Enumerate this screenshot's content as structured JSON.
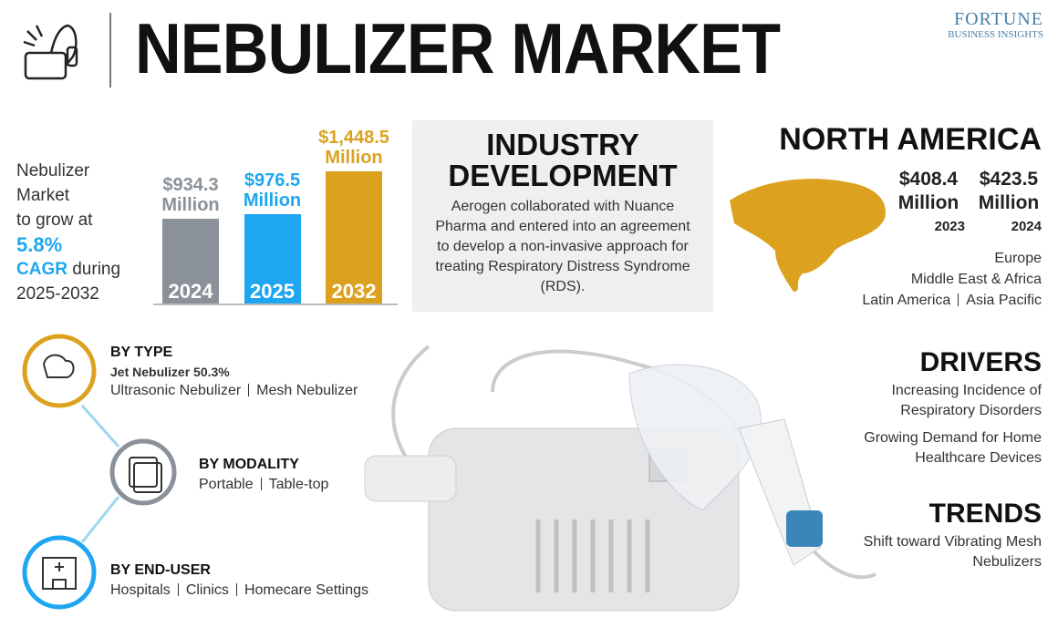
{
  "header": {
    "title": "NEBULIZER MARKET",
    "logo_line1": "FORTUNE",
    "logo_line2": "BUSINESS INSIGHTS"
  },
  "growth": {
    "lines": [
      "Nebulizer",
      "Market",
      "to grow at"
    ],
    "cagr_value": "5.8%",
    "cagr_label": "CAGR",
    "during": "during",
    "period": "2025-2032"
  },
  "chart_data": {
    "type": "bar",
    "categories": [
      "2024",
      "2025",
      "2032"
    ],
    "values": [
      934.3,
      976.5,
      1448.5
    ],
    "value_labels": [
      "$934.3 Million",
      "$976.5 Million",
      "$1,448.5 Million"
    ],
    "colors": [
      "#8a9199",
      "#1ea7f0",
      "#dca21f"
    ]
  },
  "industry": {
    "title": "INDUSTRY DEVELOPMENT",
    "text": "Aerogen collaborated with Nuance Pharma and entered into an agreement to develop a non-invasive approach for treating Respiratory Distress Syndrome (RDS)."
  },
  "region": {
    "title": "NORTH AMERICA",
    "stats": [
      {
        "value": "$408.4 Million",
        "year": "2023"
      },
      {
        "value": "$423.5 Million",
        "year": "2024"
      }
    ],
    "others": [
      "Europe",
      "Middle East & Africa",
      "Latin America",
      "Asia Pacific"
    ]
  },
  "segments": [
    {
      "title": "BY TYPE",
      "highlight": "Jet Nebulizer 50.3%",
      "items": [
        "Ultrasonic Nebulizer",
        "Mesh Nebulizer"
      ]
    },
    {
      "title": "BY MODALITY",
      "items": [
        "Portable",
        "Table-top"
      ]
    },
    {
      "title": "BY END-USER",
      "items": [
        "Hospitals",
        "Clinics",
        "Homecare Settings"
      ]
    }
  ],
  "drivers": {
    "title": "DRIVERS",
    "items": [
      "Increasing Incidence of Respiratory Disorders",
      "Growing Demand for Home Healthcare Devices"
    ]
  },
  "trends": {
    "title": "TRENDS",
    "items": [
      "Shift toward Vibrating Mesh Nebulizers"
    ]
  }
}
